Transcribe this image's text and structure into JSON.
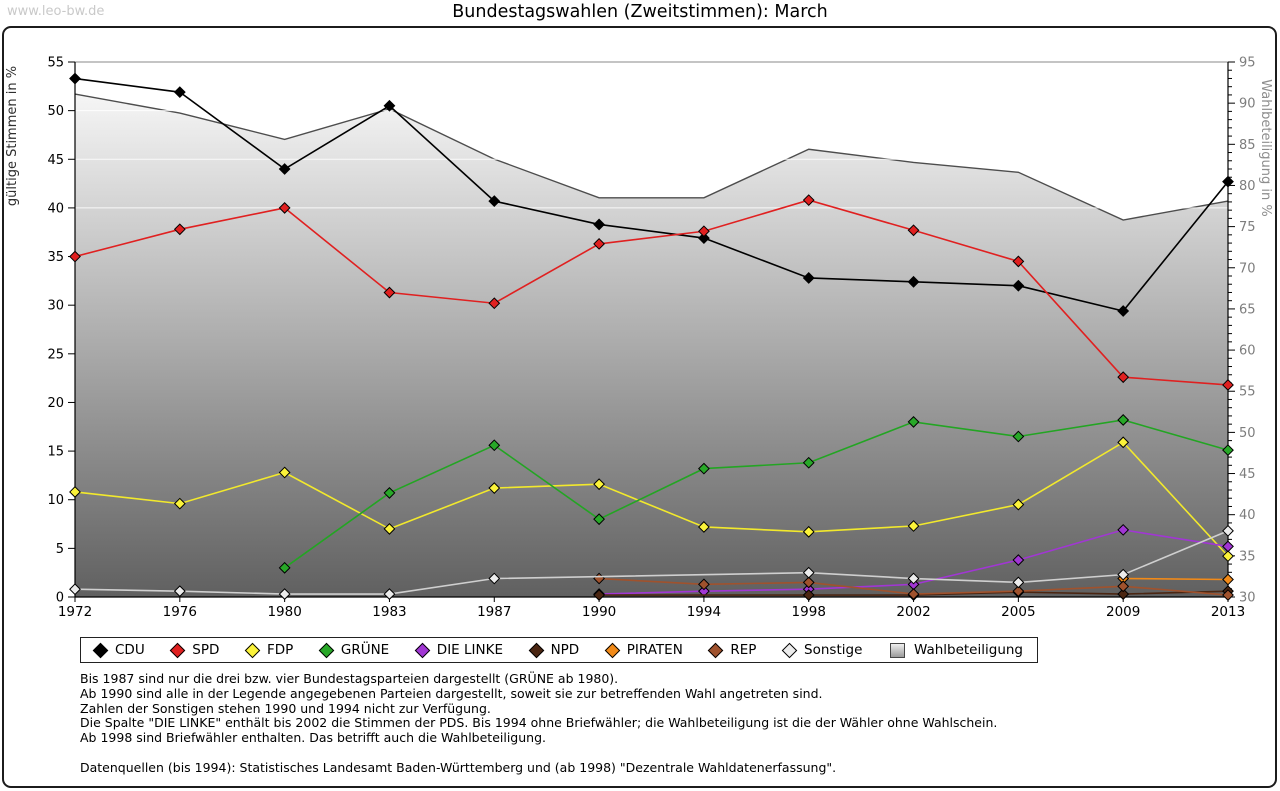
{
  "page": {
    "watermark": "www.leo-bw.de",
    "title": "Bundestagswahlen (Zweitstimmen): March"
  },
  "chart_data": {
    "type": "line",
    "title": "Bundestagswahlen (Zweitstimmen): March",
    "categories": [
      "1972",
      "1976",
      "1980",
      "1983",
      "1987",
      "1990",
      "1994",
      "1998",
      "2002",
      "2005",
      "2009",
      "2013"
    ],
    "left_axis": {
      "label": "gültige Stimmen in %",
      "min": 0,
      "max": 55,
      "step": 5
    },
    "right_axis": {
      "label": "Wahlbeteiligung in %",
      "min": 30,
      "max": 95,
      "step": 5
    },
    "gridlines_left_values": [
      40,
      45,
      50
    ],
    "legend_position": "bottom",
    "grid": "partial-white",
    "series": [
      {
        "name": "CDU",
        "type": "line",
        "axis": "left",
        "color": "#000000",
        "marker_fill": "#000000",
        "values": [
          53.3,
          51.9,
          44.0,
          50.5,
          40.7,
          38.3,
          36.9,
          32.8,
          32.4,
          32.0,
          29.4,
          42.7
        ]
      },
      {
        "name": "SPD",
        "type": "line",
        "axis": "left",
        "color": "#e02020",
        "marker_fill": "#e02020",
        "values": [
          35.0,
          37.8,
          40.0,
          31.3,
          30.2,
          36.3,
          37.6,
          40.8,
          37.7,
          34.5,
          22.6,
          21.8
        ]
      },
      {
        "name": "FDP",
        "type": "line",
        "axis": "left",
        "color": "#f2e92c",
        "marker_fill": "#fbf33a",
        "values": [
          10.8,
          9.6,
          12.8,
          7.0,
          11.2,
          11.6,
          7.2,
          6.7,
          7.3,
          9.5,
          15.9,
          4.2
        ]
      },
      {
        "name": "GRÜNE",
        "type": "line",
        "axis": "left",
        "color": "#23a523",
        "marker_fill": "#28a828",
        "values": [
          null,
          null,
          3.0,
          10.7,
          15.6,
          8.0,
          13.2,
          13.8,
          18.0,
          16.5,
          18.2,
          15.1
        ]
      },
      {
        "name": "DIE LINKE",
        "type": "line",
        "axis": "left",
        "color": "#a136d4",
        "marker_fill": "#a136d4",
        "values": [
          null,
          null,
          null,
          null,
          null,
          0.3,
          0.6,
          0.8,
          1.3,
          3.8,
          6.9,
          5.2
        ]
      },
      {
        "name": "NPD",
        "type": "line",
        "axis": "left",
        "color": "#4b2612",
        "marker_fill": "#4b2612",
        "values": [
          null,
          null,
          null,
          null,
          null,
          0.2,
          null,
          0.2,
          0.2,
          0.5,
          0.3,
          0.6
        ]
      },
      {
        "name": "PIRATEN",
        "type": "line",
        "axis": "left",
        "color": "#f28a18",
        "marker_fill": "#f28a18",
        "values": [
          null,
          null,
          null,
          null,
          null,
          null,
          null,
          null,
          null,
          null,
          1.9,
          1.8
        ]
      },
      {
        "name": "REP",
        "type": "line",
        "axis": "left",
        "color": "#a0522d",
        "marker_fill": "#a0522d",
        "values": [
          null,
          null,
          null,
          null,
          null,
          1.9,
          1.3,
          1.5,
          0.3,
          0.6,
          1.1,
          0.2
        ]
      },
      {
        "name": "Sonstige",
        "type": "line",
        "axis": "left",
        "color": "#cfcfcf",
        "marker_fill": "#ececec",
        "values": [
          0.8,
          0.6,
          0.3,
          0.3,
          1.9,
          null,
          null,
          2.5,
          1.9,
          1.5,
          2.3,
          6.8
        ]
      },
      {
        "name": "Wahlbeteiligung",
        "type": "area",
        "axis": "right",
        "color": "#4d4d4d",
        "area_gradient_top": "#ffffff",
        "area_gradient_bottom": "#606060",
        "values": [
          91.1,
          88.8,
          85.6,
          89.3,
          83.2,
          78.5,
          78.5,
          84.4,
          82.8,
          81.6,
          75.8,
          78.1
        ]
      }
    ]
  },
  "footnotes": {
    "lines": [
      "Bis 1987 sind nur die drei bzw. vier Bundestagsparteien dargestellt (GRÜNE ab 1980).",
      "Ab 1990 sind alle in der Legende angegebenen Parteien dargestellt, soweit sie zur betreffenden Wahl angetreten sind.",
      "Zahlen der Sonstigen stehen 1990 und 1994 nicht zur Verfügung.",
      "Die Spalte \"DIE LINKE\" enthält bis 2002 die Stimmen der PDS. Bis 1994 ohne Briefwähler; die Wahlbeteiligung ist die der Wähler ohne Wahlschein.",
      "Ab 1998 sind Briefwähler enthalten. Das betrifft auch die Wahlbeteiligung.",
      "",
      "Datenquellen (bis 1994): Statistisches Landesamt Baden-Württemberg und (ab 1998) \"Dezentrale Wahldatenerfassung\"."
    ]
  }
}
